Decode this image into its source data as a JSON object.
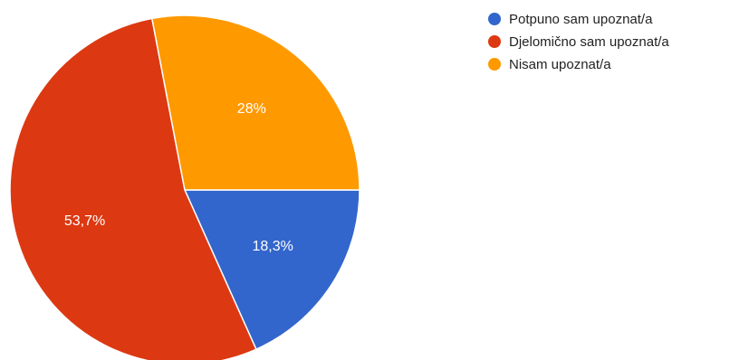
{
  "chart_data": {
    "type": "pie",
    "categories": [
      "Potpuno sam upoznat/a",
      "Djelomično sam upoznat/a",
      "Nisam upoznat/a"
    ],
    "values": [
      18.3,
      53.7,
      28
    ],
    "labels": [
      "18,3%",
      "53,7%",
      "28%"
    ],
    "colors": [
      "#3366cc",
      "#dc3912",
      "#ff9900"
    ],
    "legend_position": "right"
  }
}
